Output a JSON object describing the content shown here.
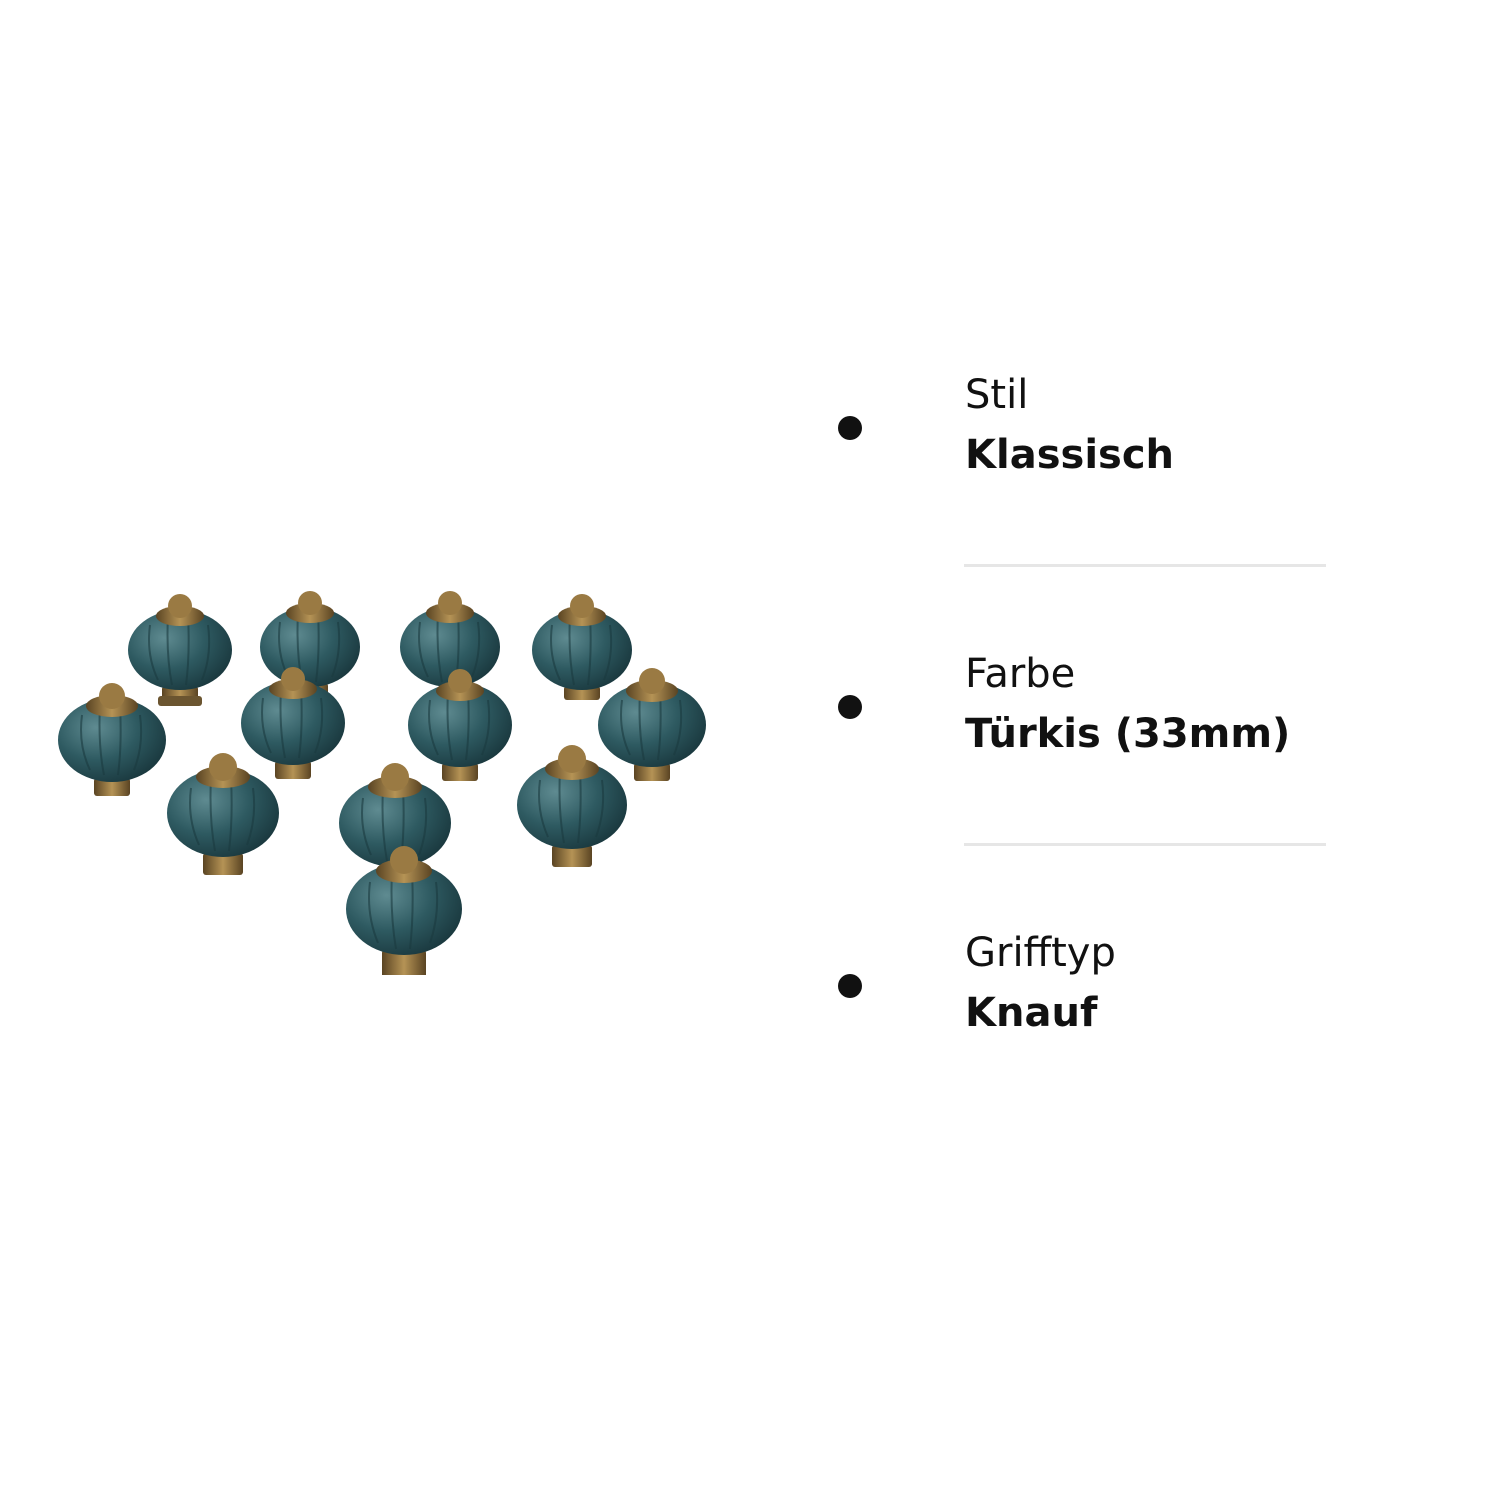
{
  "image": {
    "subject": "knob-set-photo",
    "knob_count": 12,
    "colors": {
      "ceramic": "#2e5a61",
      "ceramic_highlight": "#5f8b91",
      "brass": "#9a7a43",
      "brass_dark": "#5a4423"
    }
  },
  "specs": [
    {
      "label": "Stil",
      "value": "Klassisch"
    },
    {
      "label": "Farbe",
      "value": "Türkis (33mm)"
    },
    {
      "label": "Grifftyp",
      "value": "Knauf"
    }
  ],
  "colors": {
    "text": "#111111",
    "divider": "#e6e6e6",
    "background": "#ffffff"
  }
}
